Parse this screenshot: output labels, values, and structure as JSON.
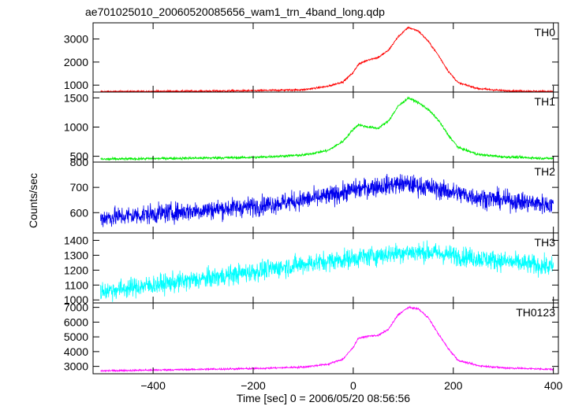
{
  "chart_data": {
    "type": "line",
    "title": "ae701025010_20060520085656_wam1_trn_4band_long.qdp",
    "xlabel": "Time [sec] 0 = 2006/05/20 08:56:56",
    "ylabel": "Counts/sec",
    "xlim": [
      -520,
      410
    ],
    "x_ticks": [
      -400,
      -200,
      0,
      200,
      400
    ],
    "panels": [
      {
        "name": "TH0",
        "color": "#ff0000",
        "ylim": [
          700,
          3700
        ],
        "y_ticks": [
          1000,
          2000,
          3000
        ],
        "noise": 40,
        "x": [
          -500,
          -400,
          -300,
          -200,
          -100,
          -50,
          -20,
          0,
          10,
          30,
          50,
          70,
          90,
          110,
          130,
          150,
          170,
          190,
          210,
          250,
          300,
          400
        ],
        "y": [
          720,
          730,
          740,
          760,
          800,
          950,
          1150,
          1550,
          1900,
          2100,
          2200,
          2500,
          3100,
          3500,
          3350,
          2900,
          2300,
          1600,
          1100,
          850,
          760,
          720
        ]
      },
      {
        "name": "TH1",
        "color": "#00ee00",
        "ylim": [
          400,
          1600
        ],
        "y_ticks": [
          500,
          1000,
          1500
        ],
        "noise": 22,
        "x": [
          -500,
          -400,
          -300,
          -200,
          -100,
          -50,
          -20,
          0,
          10,
          30,
          50,
          70,
          90,
          110,
          130,
          150,
          170,
          190,
          210,
          250,
          300,
          400
        ],
        "y": [
          450,
          460,
          470,
          480,
          520,
          600,
          760,
          960,
          1040,
          1000,
          980,
          1100,
          1360,
          1500,
          1420,
          1300,
          1120,
          860,
          650,
          530,
          490,
          460
        ]
      },
      {
        "name": "TH2",
        "color": "#0000ee",
        "ylim": [
          520,
          800
        ],
        "y_ticks": [
          600,
          700,
          800
        ],
        "noise": 38,
        "x": [
          -500,
          -400,
          -300,
          -200,
          -100,
          -50,
          0,
          50,
          100,
          150,
          200,
          250,
          300,
          400
        ],
        "y": [
          580,
          595,
          610,
          625,
          650,
          665,
          690,
          705,
          715,
          700,
          680,
          660,
          650,
          630
        ]
      },
      {
        "name": "TH3",
        "color": "#00ffff",
        "ylim": [
          980,
          1450
        ],
        "y_ticks": [
          1000,
          1100,
          1200,
          1300,
          1400
        ],
        "noise": 65,
        "x": [
          -500,
          -400,
          -300,
          -200,
          -100,
          0,
          100,
          150,
          200,
          250,
          300,
          350,
          400
        ],
        "y": [
          1060,
          1100,
          1140,
          1190,
          1240,
          1280,
          1320,
          1320,
          1300,
          1280,
          1260,
          1240,
          1220
        ]
      },
      {
        "name": "TH0123",
        "color": "#ff00ff",
        "ylim": [
          2500,
          7300
        ],
        "y_ticks": [
          3000,
          4000,
          5000,
          6000,
          7000
        ],
        "noise": 60,
        "x": [
          -500,
          -400,
          -300,
          -200,
          -100,
          -50,
          -20,
          0,
          10,
          30,
          50,
          70,
          90,
          110,
          130,
          150,
          170,
          190,
          210,
          250,
          300,
          400
        ],
        "y": [
          2700,
          2750,
          2800,
          2850,
          2950,
          3150,
          3500,
          4300,
          4900,
          5050,
          5100,
          5500,
          6500,
          7000,
          6900,
          6300,
          5200,
          4200,
          3400,
          3050,
          2900,
          2800
        ]
      }
    ]
  }
}
